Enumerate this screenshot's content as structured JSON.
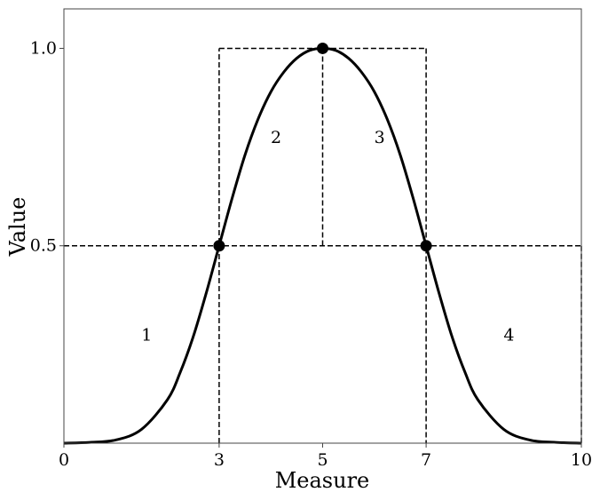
{
  "chart_data": {
    "type": "line",
    "title": "",
    "xlabel": "Measure",
    "ylabel": "Value",
    "xlim": [
      0,
      10
    ],
    "ylim": [
      0,
      1.1
    ],
    "xticks": [
      "0",
      "3",
      "5",
      "7",
      "10"
    ],
    "yticks": [
      "0.5",
      "1.0"
    ],
    "grid": false,
    "legend": "none",
    "series": [
      {
        "type": "curve",
        "color": "#000000",
        "x": [
          0,
          0.5,
          1,
          1.5,
          2,
          2.25,
          2.5,
          2.75,
          3,
          3.25,
          3.5,
          3.75,
          4,
          4.25,
          4.5,
          4.75,
          5,
          5.25,
          5.5,
          5.75,
          6,
          6.25,
          6.5,
          6.75,
          7,
          7.25,
          7.5,
          7.75,
          8,
          8.5,
          9,
          9.5,
          10
        ],
        "y": [
          0.0,
          0.002,
          0.008,
          0.035,
          0.11,
          0.18,
          0.27,
          0.38,
          0.5,
          0.62,
          0.73,
          0.82,
          0.89,
          0.94,
          0.975,
          0.995,
          1.0,
          0.995,
          0.975,
          0.94,
          0.89,
          0.82,
          0.73,
          0.62,
          0.5,
          0.38,
          0.27,
          0.18,
          0.11,
          0.035,
          0.008,
          0.002,
          0.0
        ]
      }
    ],
    "points": [
      {
        "x": 3,
        "y": 0.5
      },
      {
        "x": 5,
        "y": 1.0
      },
      {
        "x": 7,
        "y": 0.5
      }
    ],
    "reference_lines": [
      {
        "from": [
          3,
          0
        ],
        "to": [
          3,
          1.0
        ]
      },
      {
        "from": [
          3,
          1.0
        ],
        "to": [
          7,
          1.0
        ]
      },
      {
        "from": [
          7,
          1.0
        ],
        "to": [
          7,
          0
        ]
      },
      {
        "from": [
          5,
          1.0
        ],
        "to": [
          5,
          0.5
        ]
      },
      {
        "from": [
          0,
          0.5
        ],
        "to": [
          10,
          0.5
        ]
      },
      {
        "from": [
          10,
          0.5
        ],
        "to": [
          10,
          0
        ]
      }
    ],
    "region_labels": [
      {
        "text": "1",
        "x": 1.6,
        "y": 0.26
      },
      {
        "text": "2",
        "x": 4.1,
        "y": 0.76
      },
      {
        "text": "3",
        "x": 6.1,
        "y": 0.76
      },
      {
        "text": "4",
        "x": 8.6,
        "y": 0.26
      }
    ]
  }
}
